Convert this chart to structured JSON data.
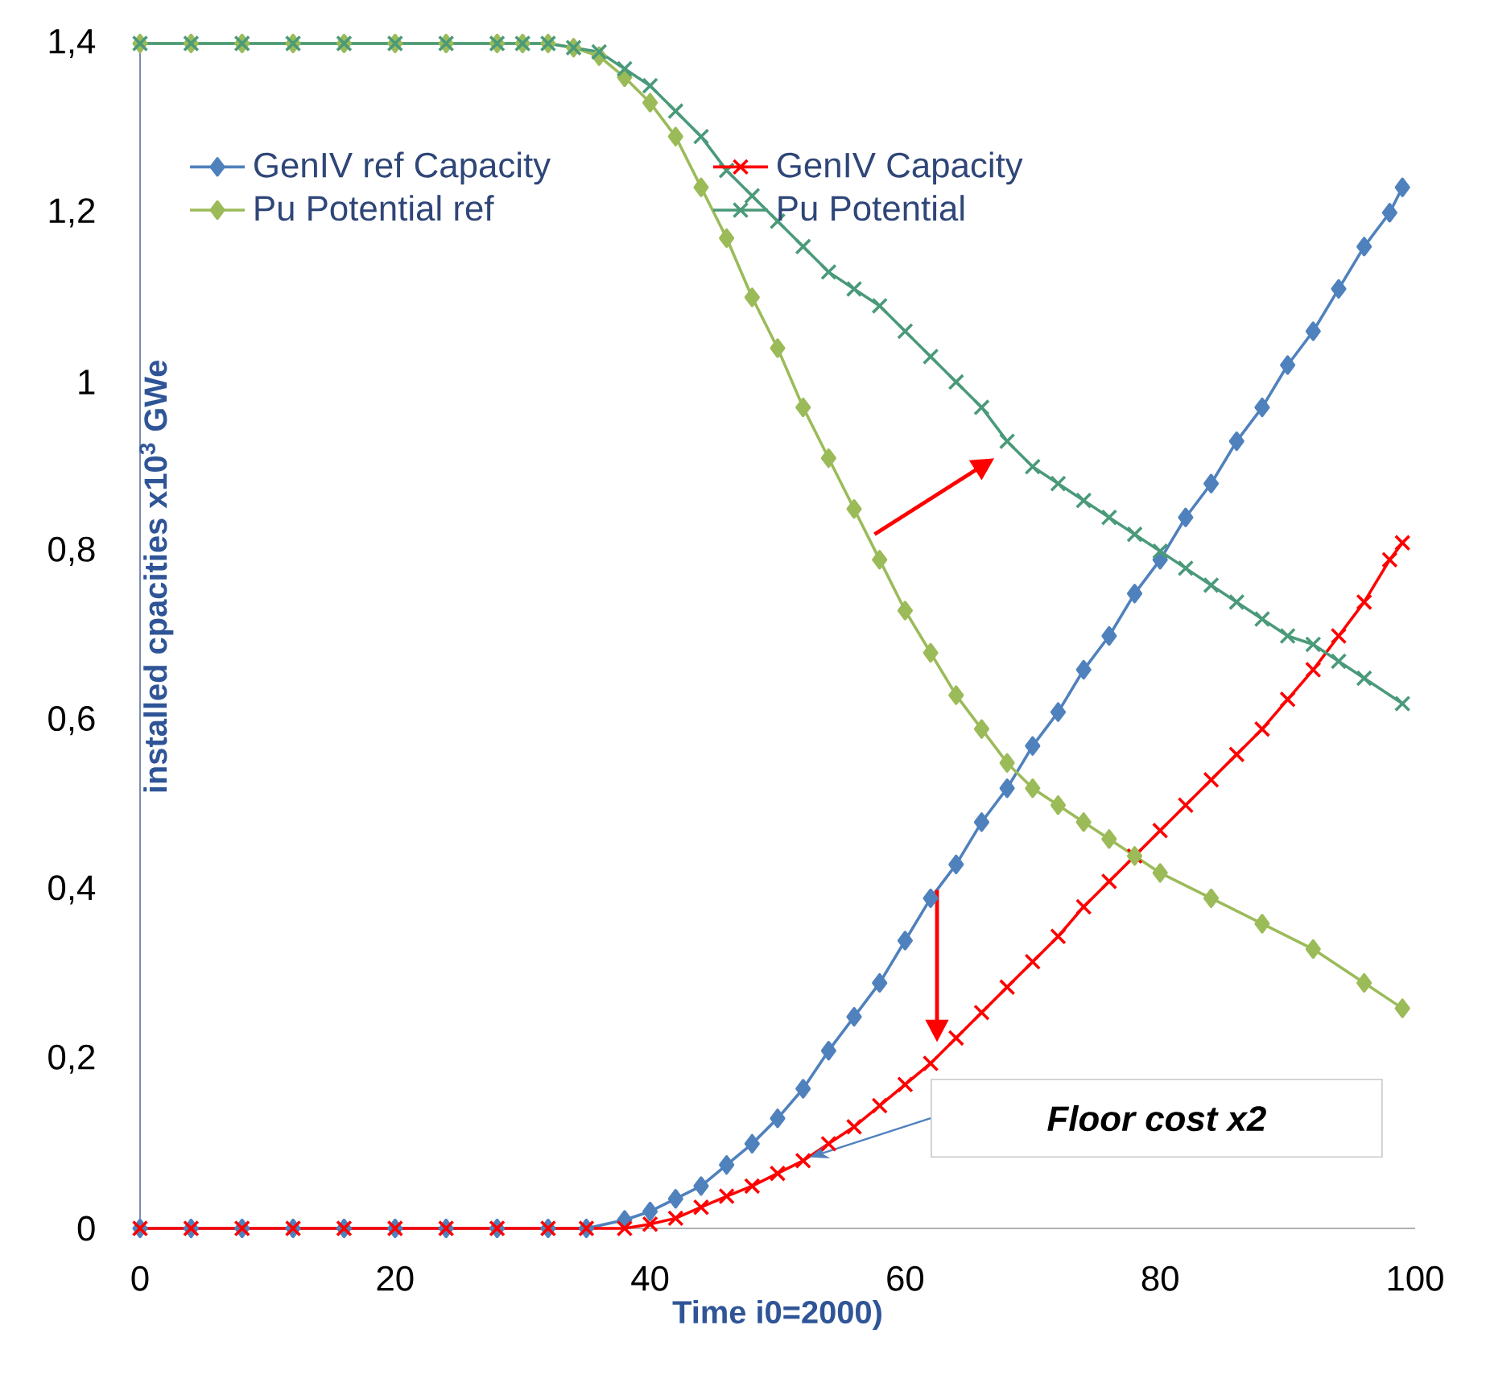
{
  "chart_data": {
    "type": "line",
    "xlabel": "Time i0=2000)",
    "ylabel": "installed cpacities x10$^{3}$ GWe",
    "xlim": [
      0,
      100
    ],
    "xticks": [
      0,
      20,
      40,
      60,
      80,
      100
    ],
    "ylim": [
      0,
      1.4
    ],
    "yticks": [
      0,
      {
        "value": 0.2,
        "label": "0,2"
      },
      {
        "value": 0.4,
        "label": "0,4"
      },
      {
        "value": 0.6,
        "label": "0,6"
      },
      {
        "value": 0.8,
        "label": "0,8"
      },
      1,
      {
        "value": 1.2,
        "label": "1,2"
      },
      {
        "value": 1.4,
        "label": "1,4"
      }
    ],
    "grid": false,
    "legend": "top",
    "annotations": [
      "Floor cost x2"
    ],
    "series": [
      {
        "name": "GenIV ref Capacity",
        "color": "#4f81bd",
        "marker": "diamond",
        "x": [
          0,
          4,
          8,
          12,
          16,
          20,
          24,
          28,
          32,
          35,
          38,
          40,
          42,
          44,
          46,
          48,
          50,
          52,
          54,
          56,
          58,
          60,
          62,
          64,
          66,
          68,
          70,
          72,
          74,
          76,
          78,
          80,
          82,
          84,
          86,
          88,
          90,
          92,
          94,
          96,
          98,
          99
        ],
        "values": [
          0,
          0,
          0,
          0,
          0,
          0,
          0,
          0,
          0,
          0,
          0.01,
          0.02,
          0.035,
          0.05,
          0.075,
          0.1,
          0.13,
          0.165,
          0.21,
          0.25,
          0.29,
          0.34,
          0.39,
          0.43,
          0.48,
          0.52,
          0.57,
          0.61,
          0.66,
          0.7,
          0.75,
          0.79,
          0.84,
          0.88,
          0.93,
          0.97,
          1.02,
          1.06,
          1.11,
          1.16,
          1.2,
          1.23
        ]
      },
      {
        "name": "GenIV Capacity",
        "color": "#ff0000",
        "marker": "cross",
        "x": [
          0,
          4,
          8,
          12,
          16,
          20,
          24,
          28,
          32,
          35,
          38,
          40,
          42,
          44,
          46,
          48,
          50,
          52,
          54,
          56,
          58,
          60,
          62,
          64,
          66,
          68,
          70,
          72,
          74,
          76,
          78,
          80,
          82,
          84,
          86,
          88,
          90,
          92,
          94,
          96,
          98,
          99
        ],
        "values": [
          0,
          0,
          0,
          0,
          0,
          0,
          0,
          0,
          0,
          0,
          0,
          0.005,
          0.012,
          0.025,
          0.038,
          0.05,
          0.065,
          0.08,
          0.1,
          0.12,
          0.145,
          0.17,
          0.195,
          0.225,
          0.255,
          0.285,
          0.315,
          0.345,
          0.38,
          0.41,
          0.44,
          0.47,
          0.5,
          0.53,
          0.56,
          0.59,
          0.625,
          0.66,
          0.7,
          0.74,
          0.79,
          0.81
        ]
      },
      {
        "name": "Pu Potential ref",
        "color": "#9bbb59",
        "marker": "diamond",
        "x": [
          0,
          4,
          8,
          12,
          16,
          20,
          24,
          28,
          30,
          32,
          34,
          36,
          38,
          40,
          42,
          44,
          46,
          48,
          50,
          52,
          54,
          56,
          58,
          60,
          62,
          64,
          66,
          68,
          70,
          72,
          74,
          76,
          78,
          80,
          84,
          88,
          92,
          96,
          99
        ],
        "values": [
          1.4,
          1.4,
          1.4,
          1.4,
          1.4,
          1.4,
          1.4,
          1.4,
          1.4,
          1.4,
          1.395,
          1.385,
          1.36,
          1.33,
          1.29,
          1.23,
          1.17,
          1.1,
          1.04,
          0.97,
          0.91,
          0.85,
          0.79,
          0.73,
          0.68,
          0.63,
          0.59,
          0.55,
          0.52,
          0.5,
          0.48,
          0.46,
          0.44,
          0.42,
          0.39,
          0.36,
          0.33,
          0.29,
          0.26
        ]
      },
      {
        "name": "Pu Potential",
        "color": "#4a9a7a",
        "marker": "cross",
        "x": [
          0,
          4,
          8,
          12,
          16,
          20,
          24,
          28,
          30,
          32,
          34,
          36,
          38,
          40,
          42,
          44,
          46,
          48,
          50,
          52,
          54,
          56,
          58,
          60,
          62,
          64,
          66,
          68,
          70,
          72,
          74,
          76,
          78,
          80,
          82,
          84,
          86,
          88,
          90,
          92,
          94,
          96,
          99
        ],
        "values": [
          1.4,
          1.4,
          1.4,
          1.4,
          1.4,
          1.4,
          1.4,
          1.4,
          1.4,
          1.4,
          1.395,
          1.39,
          1.37,
          1.35,
          1.32,
          1.29,
          1.25,
          1.22,
          1.19,
          1.16,
          1.13,
          1.11,
          1.09,
          1.06,
          1.03,
          1.0,
          0.97,
          0.93,
          0.9,
          0.88,
          0.86,
          0.84,
          0.82,
          0.8,
          0.78,
          0.76,
          0.74,
          0.72,
          0.7,
          0.69,
          0.67,
          0.65,
          0.62
        ]
      }
    ]
  }
}
